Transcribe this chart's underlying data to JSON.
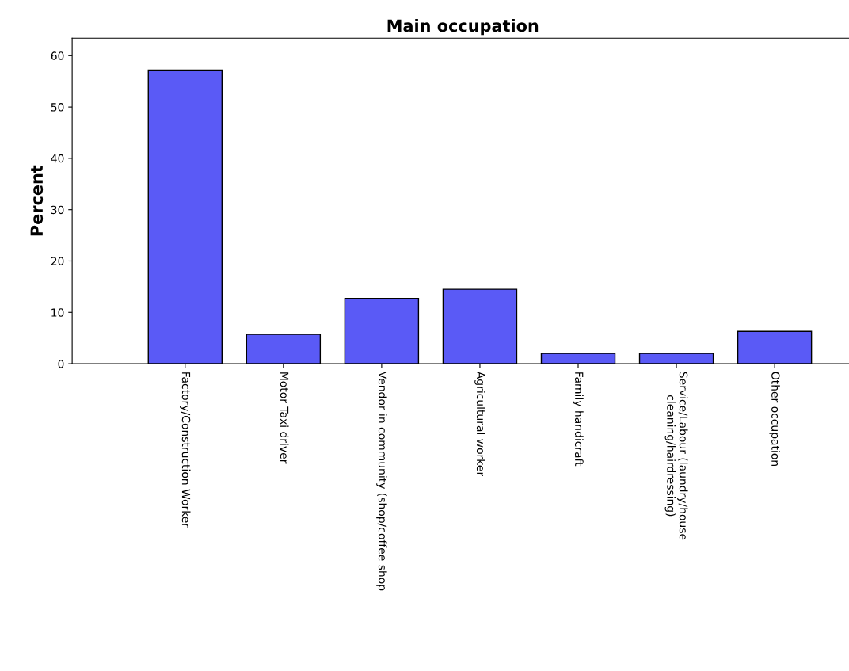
{
  "chart_data": {
    "type": "bar",
    "title": "Main occupation",
    "ylabel": "Percent",
    "categories": [
      "Factory/Construction Worker",
      "Motor Taxi driver",
      "Vendor in community (shop/coffee shop",
      "Agricultural worker",
      "Family handicraft",
      "Service/Labour (laundry/house\ncleaning/hairdressing)",
      "Other occupation"
    ],
    "values": [
      57.2,
      5.7,
      12.7,
      14.5,
      2.0,
      2.0,
      6.3
    ],
    "color": "#5a5af6",
    "ylim": [
      0,
      63.4
    ],
    "yticks": [
      0,
      10,
      20,
      30,
      40,
      50,
      60
    ],
    "grid": false
  }
}
